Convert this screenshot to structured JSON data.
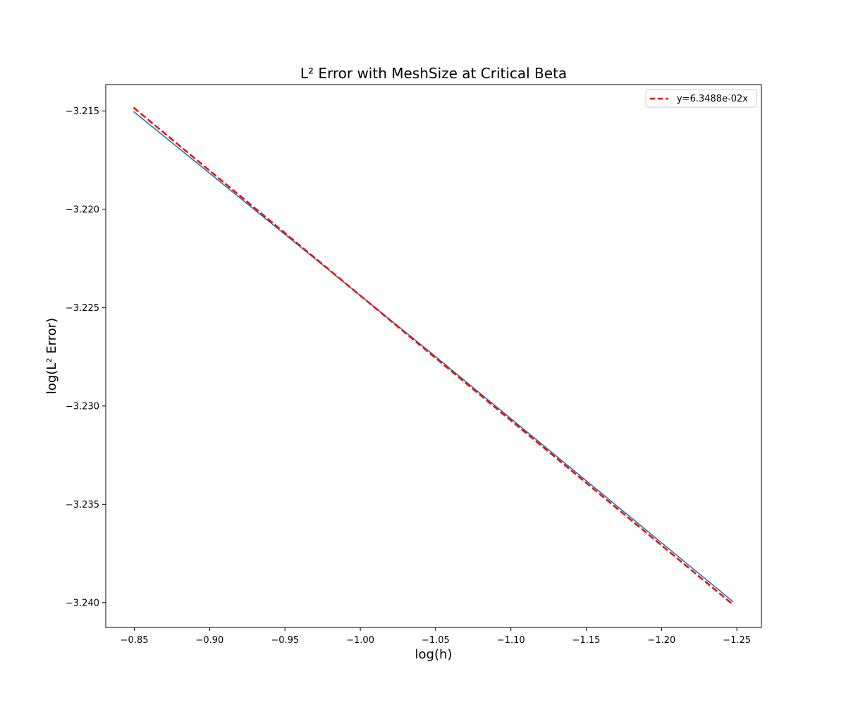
{
  "chart_data": {
    "type": "line",
    "title": "L² Error with MeshSize at Critical Beta",
    "xlabel": "log(h)",
    "ylabel": "log(L² Error)",
    "xlim": [
      -0.831,
      -1.2663
    ],
    "ylim": [
      -3.24126,
      -3.21366
    ],
    "x_inverted": true,
    "grid": false,
    "legend_position": "top-right",
    "x_ticks": [
      -0.85,
      -0.9,
      -0.95,
      -1.0,
      -1.05,
      -1.1,
      -1.15,
      -1.2,
      -1.25
    ],
    "x_tick_labels": [
      "−0.85",
      "−0.90",
      "−0.95",
      "−1.00",
      "−1.05",
      "−1.10",
      "−1.15",
      "−1.20",
      "−1.25"
    ],
    "y_ticks": [
      -3.215,
      -3.22,
      -3.225,
      -3.23,
      -3.235,
      -3.24
    ],
    "y_tick_labels": [
      "−3.215",
      "−3.220",
      "−3.225",
      "−3.230",
      "−3.235",
      "−3.240"
    ],
    "series": [
      {
        "name": "data",
        "color": "#1f77b4",
        "style": "solid",
        "in_legend": false,
        "x": [
          -0.8495,
          -1.0495,
          -1.2475
        ],
        "y": [
          -3.21503,
          -3.22746,
          -3.23995
        ]
      },
      {
        "name": "y=6.3488e-02x",
        "color": "#ff0000",
        "style": "dashed",
        "in_legend": true,
        "x": [
          -0.8495,
          -1.2475
        ],
        "y": [
          -3.21483,
          -3.2401
        ]
      }
    ]
  }
}
